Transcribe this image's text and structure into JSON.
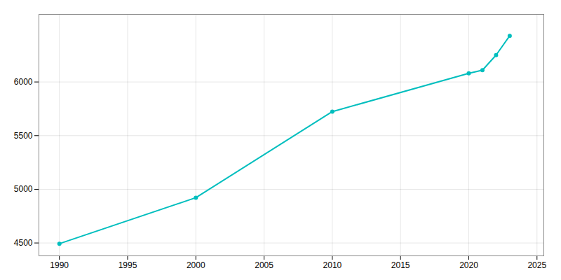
{
  "chart_data": {
    "type": "line",
    "x": [
      1990,
      2000,
      2010,
      2020,
      2021,
      2022,
      2023
    ],
    "values": [
      4493,
      4922,
      5724,
      6080,
      6110,
      6250,
      6430
    ],
    "color": "#00BEBE",
    "marker": "circle",
    "xlim": [
      1988.5,
      2025.5
    ],
    "ylim": [
      4380,
      6630
    ],
    "xticks": [
      1990,
      1995,
      2000,
      2005,
      2010,
      2015,
      2020,
      2025
    ],
    "yticks": [
      4500,
      5000,
      5500,
      6000
    ],
    "grid": true
  }
}
